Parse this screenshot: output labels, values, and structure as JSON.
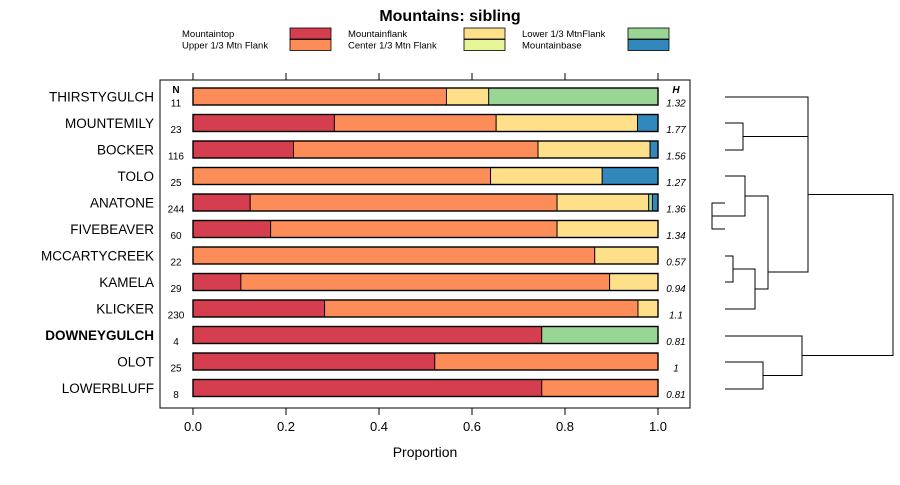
{
  "chart_data": {
    "type": "bar",
    "title": "Mountains: sibling",
    "xlabel": "Proportion",
    "ylabel": "",
    "xlim": [
      0,
      1
    ],
    "xticks": [
      "0.0",
      "0.2",
      "0.4",
      "0.6",
      "0.8",
      "1.0"
    ],
    "n_header": "N",
    "h_header": "H",
    "highlighted_category": "DOWNEYGULCH",
    "series": [
      {
        "name": "Mountaintop",
        "color": "#d53e4f"
      },
      {
        "name": "Upper 1/3 Mtn Flank",
        "color": "#fc8d59"
      },
      {
        "name": "Mountainflank",
        "color": "#fee08b"
      },
      {
        "name": "Center 1/3 Mtn Flank",
        "color": "#e6f598"
      },
      {
        "name": "Lower 1/3 MtnFlank",
        "color": "#99d594"
      },
      {
        "name": "Mountainbase",
        "color": "#3288bd"
      }
    ],
    "rows": [
      {
        "name": "THIRSTYGULCH",
        "n": "11",
        "h": "1.32",
        "values": [
          0,
          0.545,
          0.091,
          0,
          0.364,
          0
        ]
      },
      {
        "name": "MOUNTEMILY",
        "n": "23",
        "h": "1.77",
        "values": [
          0.304,
          0.348,
          0.304,
          0,
          0,
          0.044
        ]
      },
      {
        "name": "BOCKER",
        "n": "116",
        "h": "1.56",
        "values": [
          0.216,
          0.526,
          0.241,
          0,
          0,
          0.017
        ]
      },
      {
        "name": "TOLO",
        "n": "25",
        "h": "1.27",
        "values": [
          0,
          0.64,
          0.24,
          0,
          0,
          0.12
        ]
      },
      {
        "name": "ANATONE",
        "n": "244",
        "h": "1.36",
        "values": [
          0.123,
          0.66,
          0.197,
          0,
          0.008,
          0.012
        ]
      },
      {
        "name": "FIVEBEAVER",
        "n": "60",
        "h": "1.34",
        "values": [
          0.167,
          0.616,
          0.217,
          0,
          0,
          0
        ]
      },
      {
        "name": "MCCARTYCREEK",
        "n": "22",
        "h": "0.57",
        "values": [
          0,
          0.864,
          0.136,
          0,
          0,
          0
        ]
      },
      {
        "name": "KAMELA",
        "n": "29",
        "h": "0.94",
        "values": [
          0.103,
          0.793,
          0.104,
          0,
          0,
          0
        ]
      },
      {
        "name": "KLICKER",
        "n": "230",
        "h": "1.1",
        "values": [
          0.283,
          0.674,
          0.043,
          0,
          0,
          0
        ]
      },
      {
        "name": "DOWNEYGULCH",
        "n": "4",
        "h": "0.81",
        "values": [
          0.75,
          0,
          0,
          0,
          0.25,
          0
        ]
      },
      {
        "name": "OLOT",
        "n": "25",
        "h": "1",
        "values": [
          0.52,
          0.48,
          0,
          0,
          0,
          0
        ]
      },
      {
        "name": "LOWERBLUFF",
        "n": "8",
        "h": "0.81",
        "values": [
          0.75,
          0.25,
          0,
          0,
          0,
          0
        ]
      }
    ]
  }
}
